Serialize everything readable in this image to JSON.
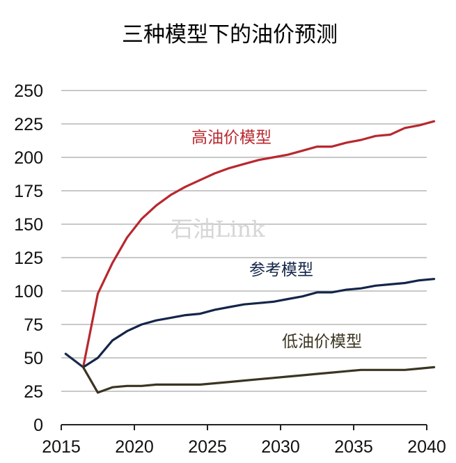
{
  "chart_data": {
    "type": "line",
    "title": "三种模型下的油价预测",
    "xlabel": "",
    "ylabel": "",
    "xlim": [
      2015,
      2040
    ],
    "ylim": [
      0,
      250
    ],
    "xticks": [
      2015,
      2020,
      2025,
      2030,
      2035,
      2040
    ],
    "yticks": [
      0,
      25,
      50,
      75,
      100,
      125,
      150,
      175,
      200,
      225,
      250
    ],
    "grid": true,
    "watermark": "石油Link",
    "history": {
      "name": "history",
      "color": "#1a2a4a",
      "x": [
        2015.3,
        2016.5
      ],
      "y": [
        53,
        43
      ]
    },
    "series": [
      {
        "name": "高油价模型",
        "color": "#b8282e",
        "x": [
          2016.5,
          2017.5,
          2018.5,
          2019.5,
          2020.5,
          2021.5,
          2022.5,
          2023.5,
          2024.5,
          2025.5,
          2026.5,
          2027.5,
          2028.5,
          2029.5,
          2030.5,
          2031.5,
          2032.5,
          2033.5,
          2034.5,
          2035.5,
          2036.5,
          2037.5,
          2038.5,
          2039.5,
          2040.5
        ],
        "y": [
          43,
          98,
          121,
          140,
          154,
          164,
          172,
          178,
          183,
          188,
          192,
          195,
          198,
          200,
          202,
          205,
          208,
          208,
          211,
          213,
          216,
          217,
          222,
          224,
          227
        ]
      },
      {
        "name": "参考模型",
        "color": "#14254a",
        "x": [
          2016.5,
          2017.5,
          2018.5,
          2019.5,
          2020.5,
          2021.5,
          2022.5,
          2023.5,
          2024.5,
          2025.5,
          2026.5,
          2027.5,
          2028.5,
          2029.5,
          2030.5,
          2031.5,
          2032.5,
          2033.5,
          2034.5,
          2035.5,
          2036.5,
          2037.5,
          2038.5,
          2039.5,
          2040.5
        ],
        "y": [
          43,
          50,
          63,
          70,
          75,
          78,
          80,
          82,
          83,
          86,
          88,
          90,
          91,
          92,
          94,
          96,
          99,
          99,
          101,
          102,
          104,
          105,
          106,
          108,
          109
        ]
      },
      {
        "name": "低油价模型",
        "color": "#3a3422",
        "x": [
          2016.5,
          2017.5,
          2018.5,
          2019.5,
          2020.5,
          2021.5,
          2022.5,
          2023.5,
          2024.5,
          2025.5,
          2026.5,
          2027.5,
          2028.5,
          2029.5,
          2030.5,
          2031.5,
          2032.5,
          2033.5,
          2034.5,
          2035.5,
          2036.5,
          2037.5,
          2038.5,
          2039.5,
          2040.5
        ],
        "y": [
          43,
          24,
          28,
          29,
          29,
          30,
          30,
          30,
          30,
          31,
          32,
          33,
          34,
          35,
          36,
          37,
          38,
          39,
          40,
          41,
          41,
          41,
          41,
          42,
          43
        ]
      }
    ]
  }
}
